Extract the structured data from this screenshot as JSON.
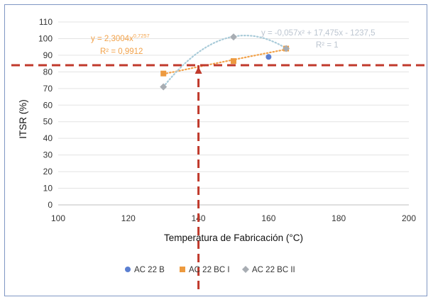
{
  "chart_data": {
    "type": "scatter",
    "xlabel": "Temperatura de Fabricación (°C)",
    "ylabel": "ITSR (%)",
    "xlim": [
      100,
      200
    ],
    "ylim": [
      0,
      110
    ],
    "x_ticks": [
      "100",
      "120",
      "140",
      "160",
      "180",
      "200"
    ],
    "y_ticks": [
      "0",
      "10",
      "20",
      "30",
      "40",
      "50",
      "60",
      "70",
      "80",
      "90",
      "100",
      "110"
    ],
    "grid": "horizontal",
    "legend_position": "bottom",
    "series": [
      {
        "name": "AC 22 B",
        "color": "#5b7fd1",
        "marker": "circle",
        "points": [
          [
            160,
            89
          ]
        ]
      },
      {
        "name": "AC 22 BC I",
        "color": "#ed9a3f",
        "marker": "square",
        "points": [
          [
            130,
            79
          ],
          [
            150,
            86.5
          ],
          [
            165,
            94
          ]
        ]
      },
      {
        "name": "AC 22 BC II",
        "color": "#a8adb3",
        "marker": "diamond",
        "points": [
          [
            130,
            71
          ],
          [
            150,
            101
          ],
          [
            165,
            94
          ]
        ]
      }
    ],
    "trendlines": [
      {
        "series": "AC 22 BC I",
        "type": "power",
        "color": "#f2a24a",
        "a": 2.3004,
        "b": 0.7257,
        "x_range": [
          130,
          165
        ]
      },
      {
        "series": "AC 22 BC II",
        "type": "polynomial",
        "color": "#a9cbd9",
        "coefficients": [
          -0.057,
          17.475,
          -1237.5
        ],
        "x_range": [
          130,
          165
        ]
      }
    ],
    "annotations": {
      "eq_power_main": "y = 2,3004x",
      "eq_power_exp": "0,7257",
      "eq_power_r2": "R² = 0,9912",
      "eq_poly": "y = -0,057x² + 17,475x - 1237,5",
      "eq_poly_r2": "R² = 1"
    },
    "reference_lines": {
      "color": "#c0392b",
      "y_value": 84,
      "x_value": 140
    }
  }
}
